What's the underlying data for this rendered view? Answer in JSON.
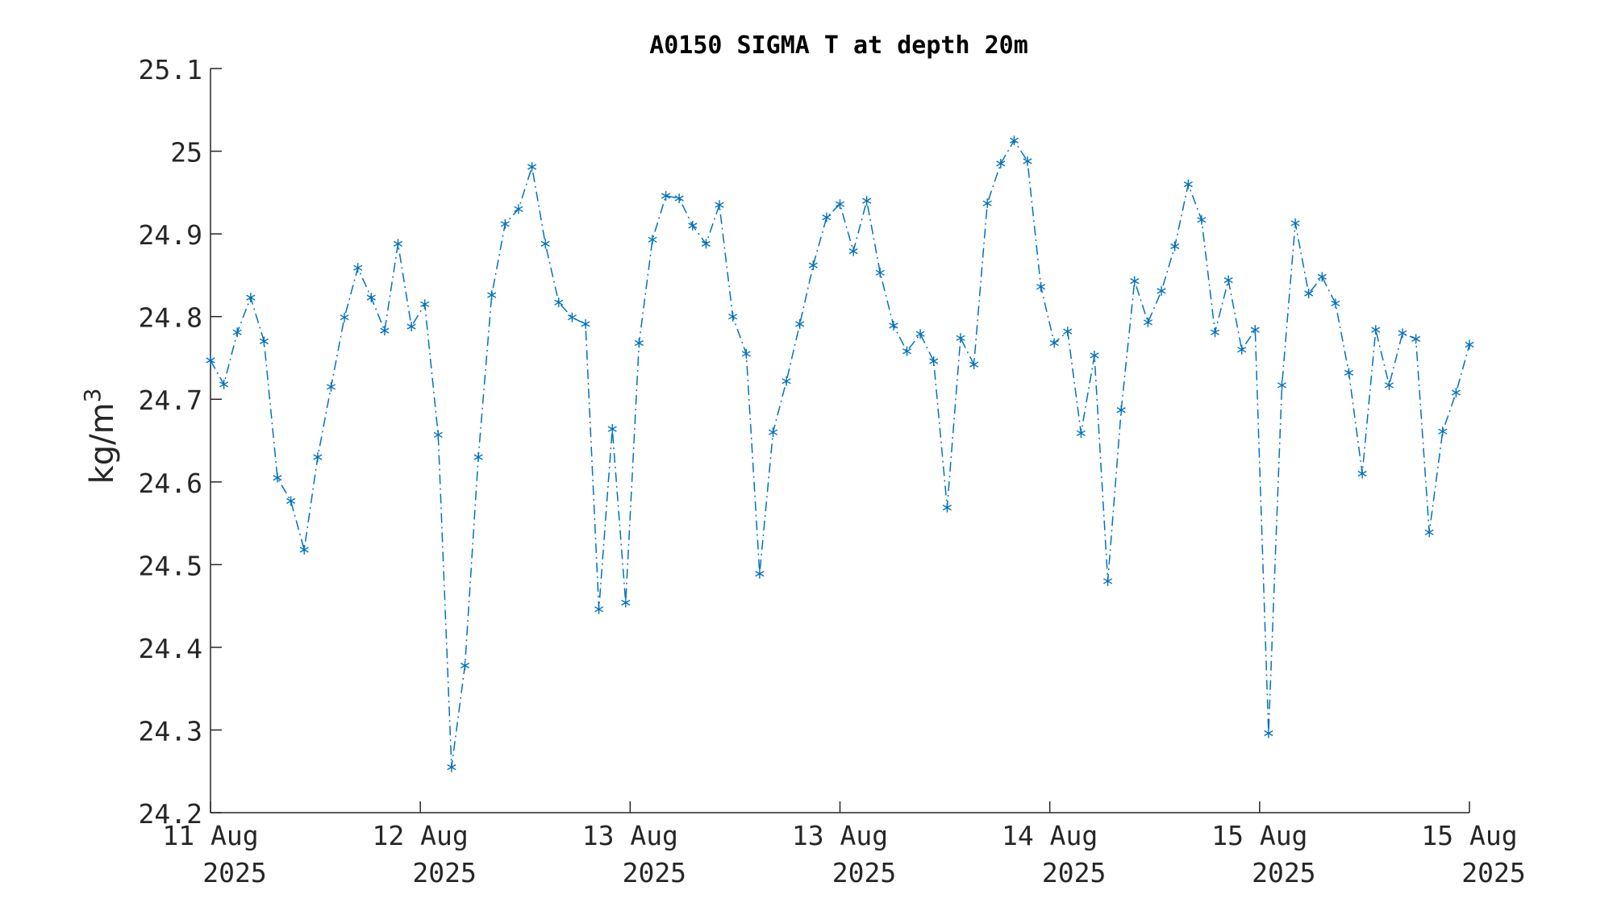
{
  "chart_data": {
    "type": "line",
    "title": "A0150 SIGMA T at depth 20m",
    "ylabel": "kg/m",
    "ylabel_superscript": "3",
    "xlabel": "",
    "ylim": [
      24.2,
      25.1
    ],
    "yticks": [
      24.2,
      24.3,
      24.4,
      24.5,
      24.6,
      24.7,
      24.8,
      24.9,
      25,
      25.1
    ],
    "ytick_labels": [
      "24.2",
      "24.3",
      "24.4",
      "24.5",
      "24.6",
      "24.7",
      "24.8",
      "24.9",
      "25",
      "25.1"
    ],
    "xlim_hours_note": "",
    "x_start": "11 Aug 2025 00:00",
    "x_end": "15 Aug 2025 00:00",
    "xticks": [
      {
        "line1": "11 Aug",
        "line2": "2025"
      },
      {
        "line1": "12 Aug",
        "line2": "2025"
      },
      {
        "line1": "13 Aug",
        "line2": "2025"
      },
      {
        "line1": "13 Aug",
        "line2": "2025"
      },
      {
        "line1": "14 Aug",
        "line2": "2025"
      },
      {
        "line1": "15 Aug",
        "line2": "2025"
      },
      {
        "line1": "15 Aug",
        "line2": "2025"
      }
    ],
    "grid": false,
    "line_style": "dash-dot",
    "marker": "asterisk",
    "color": "#0072BD",
    "series": [
      {
        "values": [
          24.747,
          24.718,
          24.781,
          24.823,
          24.77,
          24.605,
          24.577,
          24.518,
          24.63,
          24.715,
          24.799,
          24.859,
          24.823,
          24.783,
          24.888,
          24.788,
          24.815,
          24.657,
          24.255,
          24.378,
          24.63,
          24.826,
          24.912,
          24.93,
          24.981,
          24.888,
          24.817,
          24.799,
          24.791,
          24.446,
          24.664,
          24.454,
          24.768,
          24.893,
          24.946,
          24.943,
          24.91,
          24.888,
          24.935,
          24.8,
          24.755,
          24.489,
          24.66,
          24.722,
          24.791,
          24.862,
          24.92,
          24.936,
          24.879,
          24.94,
          24.853,
          24.789,
          24.758,
          24.779,
          24.746,
          24.569,
          24.774,
          24.742,
          24.937,
          24.985,
          25.013,
          24.988,
          24.836,
          24.768,
          24.782,
          24.659,
          24.753,
          24.48,
          24.687,
          24.843,
          24.793,
          24.831,
          24.885,
          24.96,
          24.917,
          24.781,
          24.844,
          24.76,
          24.784,
          24.296,
          24.717,
          24.913,
          24.828,
          24.848,
          24.816,
          24.732,
          24.61,
          24.784,
          24.717,
          24.78,
          24.773,
          24.539,
          24.661,
          24.708,
          24.766
        ]
      }
    ]
  }
}
